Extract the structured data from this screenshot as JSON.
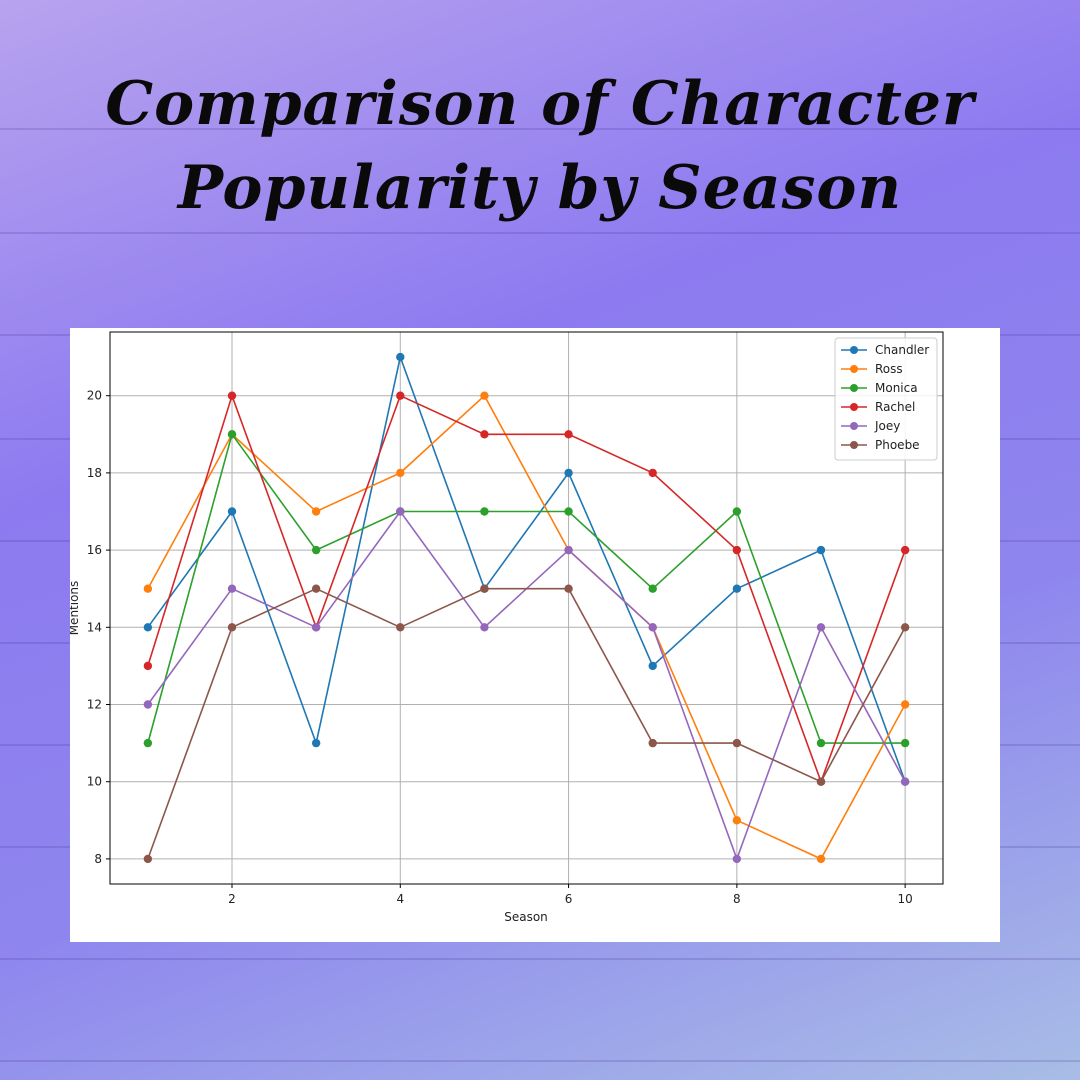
{
  "page": {
    "title_lines": [
      "Comparison of Character",
      "Popularity by Season"
    ]
  },
  "chart_data": {
    "type": "line",
    "title": "",
    "xlabel": "Season",
    "ylabel": "Mentions",
    "x": [
      1,
      2,
      3,
      4,
      5,
      6,
      7,
      8,
      9,
      10
    ],
    "xticks": [
      2,
      4,
      6,
      8,
      10
    ],
    "yticks": [
      8,
      10,
      12,
      14,
      16,
      18,
      20
    ],
    "xlim": [
      0.55,
      10.45
    ],
    "ylim": [
      7.35,
      21.65
    ],
    "grid": true,
    "legend_position": "top-right",
    "series": [
      {
        "name": "Chandler",
        "color": "#1f77b4",
        "values": [
          14,
          17,
          11,
          21,
          15,
          18,
          13,
          15,
          16,
          10
        ]
      },
      {
        "name": "Ross",
        "color": "#ff7f0e",
        "values": [
          15,
          19,
          17,
          18,
          20,
          16,
          14,
          9,
          8,
          12
        ]
      },
      {
        "name": "Monica",
        "color": "#2ca02c",
        "values": [
          11,
          19,
          16,
          17,
          17,
          17,
          15,
          17,
          11,
          11
        ]
      },
      {
        "name": "Rachel",
        "color": "#d62728",
        "values": [
          13,
          20,
          14,
          20,
          19,
          19,
          18,
          16,
          10,
          16
        ]
      },
      {
        "name": "Joey",
        "color": "#9467bd",
        "values": [
          12,
          15,
          14,
          17,
          14,
          16,
          14,
          8,
          14,
          10
        ]
      },
      {
        "name": "Phoebe",
        "color": "#8c564b",
        "values": [
          8,
          14,
          15,
          14,
          15,
          15,
          11,
          11,
          10,
          14
        ]
      }
    ]
  }
}
